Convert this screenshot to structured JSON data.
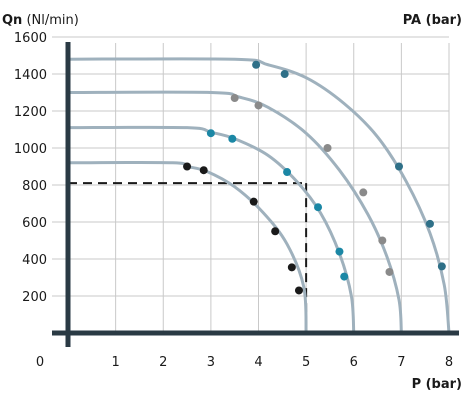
{
  "chart_data": {
    "type": "line",
    "ylabel_bold": "Qn",
    "ylabel_unit": " (Nl/min)",
    "xlabel": "P (bar)",
    "secondary_label": "PA (bar)",
    "xlim": [
      0,
      8
    ],
    "ylim": [
      0,
      1600
    ],
    "xticks": [
      "0",
      "1",
      "2",
      "3",
      "4",
      "5",
      "6",
      "7",
      "8"
    ],
    "yticks": [
      "200",
      "400",
      "600",
      "800",
      "1000",
      "1200",
      "1400",
      "1600"
    ],
    "xtick_values": [
      0,
      1,
      2,
      3,
      4,
      5,
      6,
      7,
      8
    ],
    "ytick_values": [
      200,
      400,
      600,
      800,
      1000,
      1200,
      1400,
      1600
    ],
    "grid": true,
    "reference_point": {
      "x": 5,
      "y": 810
    },
    "series": [
      {
        "pa": 5,
        "color": "#9fb1bd",
        "dot_color": "#1a1a1a",
        "curve": [
          [
            0,
            920
          ],
          [
            2.2,
            920
          ],
          [
            2.5,
            900
          ],
          [
            2.9,
            875
          ],
          [
            3.5,
            790
          ],
          [
            4.1,
            650
          ],
          [
            4.6,
            480
          ],
          [
            4.95,
            250
          ],
          [
            5.0,
            0
          ]
        ],
        "points": [
          [
            2.5,
            900
          ],
          [
            2.85,
            880
          ],
          [
            3.9,
            710
          ],
          [
            4.35,
            550
          ],
          [
            4.7,
            355
          ],
          [
            4.85,
            230
          ]
        ]
      },
      {
        "pa": 6,
        "color": "#9fb1bd",
        "dot_color": "#1b87a5",
        "curve": [
          [
            0,
            1110
          ],
          [
            2.5,
            1110
          ],
          [
            3.0,
            1085
          ],
          [
            3.5,
            1050
          ],
          [
            4.2,
            960
          ],
          [
            4.8,
            820
          ],
          [
            5.3,
            650
          ],
          [
            5.7,
            430
          ],
          [
            5.95,
            200
          ],
          [
            6.0,
            0
          ]
        ],
        "points": [
          [
            3.0,
            1080
          ],
          [
            3.45,
            1050
          ],
          [
            4.6,
            870
          ],
          [
            5.25,
            680
          ],
          [
            5.7,
            440
          ],
          [
            5.8,
            305
          ]
        ]
      },
      {
        "pa": 7,
        "color": "#9fb1bd",
        "dot_color": "#8a8a8a",
        "curve": [
          [
            0,
            1300
          ],
          [
            3.0,
            1300
          ],
          [
            3.6,
            1275
          ],
          [
            4.2,
            1220
          ],
          [
            5.0,
            1080
          ],
          [
            5.7,
            880
          ],
          [
            6.3,
            640
          ],
          [
            6.7,
            410
          ],
          [
            6.95,
            180
          ],
          [
            7.0,
            0
          ]
        ],
        "points": [
          [
            3.5,
            1270
          ],
          [
            4.0,
            1230
          ],
          [
            5.45,
            1000
          ],
          [
            6.2,
            760
          ],
          [
            6.6,
            500
          ],
          [
            6.75,
            330
          ]
        ]
      },
      {
        "pa": 8,
        "color": "#9fb1bd",
        "dot_color": "#2f7088",
        "curve": [
          [
            0,
            1480
          ],
          [
            3.5,
            1480
          ],
          [
            4.2,
            1450
          ],
          [
            5.0,
            1380
          ],
          [
            5.8,
            1240
          ],
          [
            6.5,
            1060
          ],
          [
            7.1,
            820
          ],
          [
            7.6,
            540
          ],
          [
            7.9,
            260
          ],
          [
            8.0,
            0
          ]
        ],
        "points": [
          [
            3.95,
            1450
          ],
          [
            4.55,
            1400
          ],
          [
            6.95,
            900
          ],
          [
            7.6,
            590
          ],
          [
            7.85,
            360
          ]
        ]
      }
    ]
  }
}
